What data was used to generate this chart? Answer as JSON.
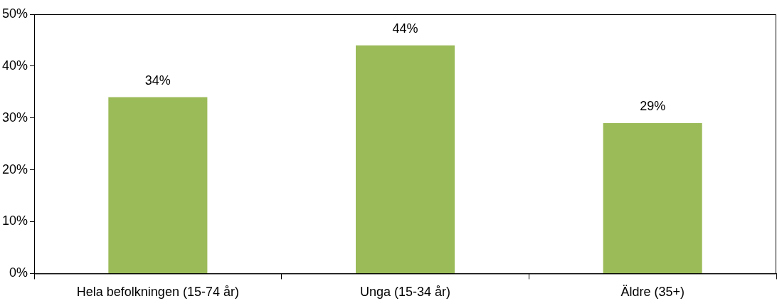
{
  "chart_data": {
    "type": "bar",
    "categories": [
      "Hela befolkningen (15-74 år)",
      "Unga (15-34 år)",
      "Äldre (35+)"
    ],
    "values": [
      34,
      44,
      29
    ],
    "color": "#9bbb59",
    "value_labels": [
      "34%",
      "44%",
      "29%"
    ],
    "ylim": [
      0,
      50
    ],
    "yticks": [
      {
        "value": 0,
        "label": "0%"
      },
      {
        "value": 10,
        "label": "10%"
      },
      {
        "value": 20,
        "label": "20%"
      },
      {
        "value": 30,
        "label": "30%"
      },
      {
        "value": 40,
        "label": "40%"
      },
      {
        "value": 50,
        "label": "50%"
      }
    ],
    "grid": false,
    "legend": false
  }
}
